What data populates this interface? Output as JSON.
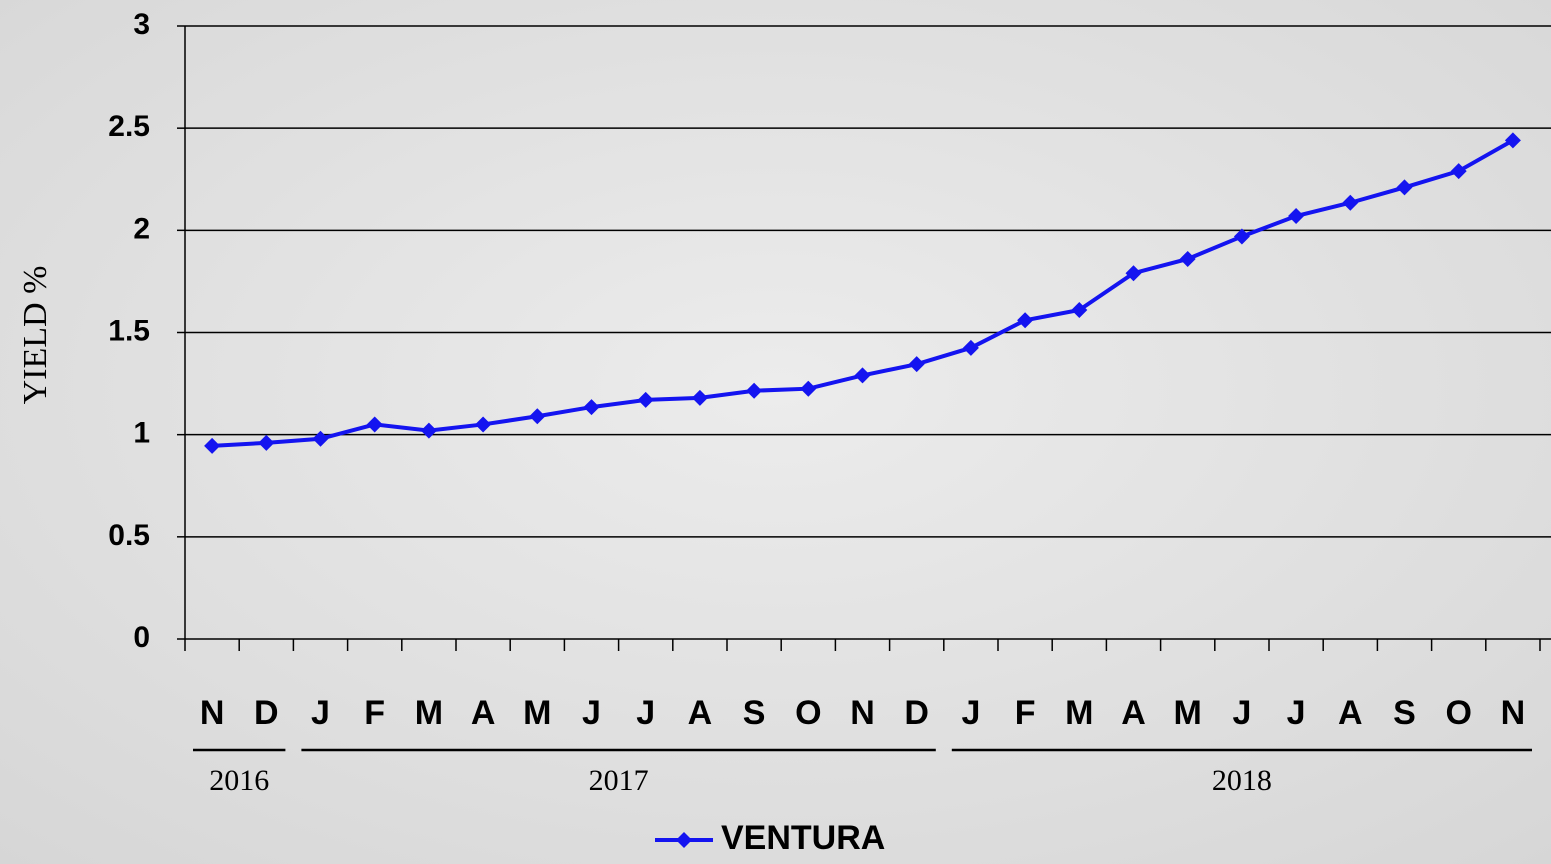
{
  "chart_data": {
    "type": "line",
    "ylabel": "YIELD %",
    "categories": [
      "N",
      "D",
      "J",
      "F",
      "M",
      "A",
      "M",
      "J",
      "J",
      "A",
      "S",
      "O",
      "N",
      "D",
      "J",
      "F",
      "M",
      "A",
      "M",
      "J",
      "J",
      "A",
      "S",
      "O",
      "N"
    ],
    "groups": [
      {
        "label": "2016",
        "span": [
          0,
          1
        ]
      },
      {
        "label": "2017",
        "span": [
          2,
          13
        ]
      },
      {
        "label": "2018",
        "span": [
          14,
          24
        ]
      }
    ],
    "series": [
      {
        "name": "VENTURA",
        "color": "#1414f0",
        "values": [
          0.945,
          0.96,
          0.98,
          1.05,
          1.02,
          1.05,
          1.09,
          1.135,
          1.17,
          1.18,
          1.215,
          1.225,
          1.29,
          1.345,
          1.425,
          1.56,
          1.61,
          1.79,
          1.86,
          1.97,
          2.07,
          2.135,
          2.21,
          2.29,
          2.44
        ]
      }
    ],
    "ylim": [
      0,
      3
    ],
    "yticks": [
      0,
      0.5,
      1,
      1.5,
      2,
      2.5,
      3
    ],
    "grid": true,
    "legend": "bottom"
  }
}
